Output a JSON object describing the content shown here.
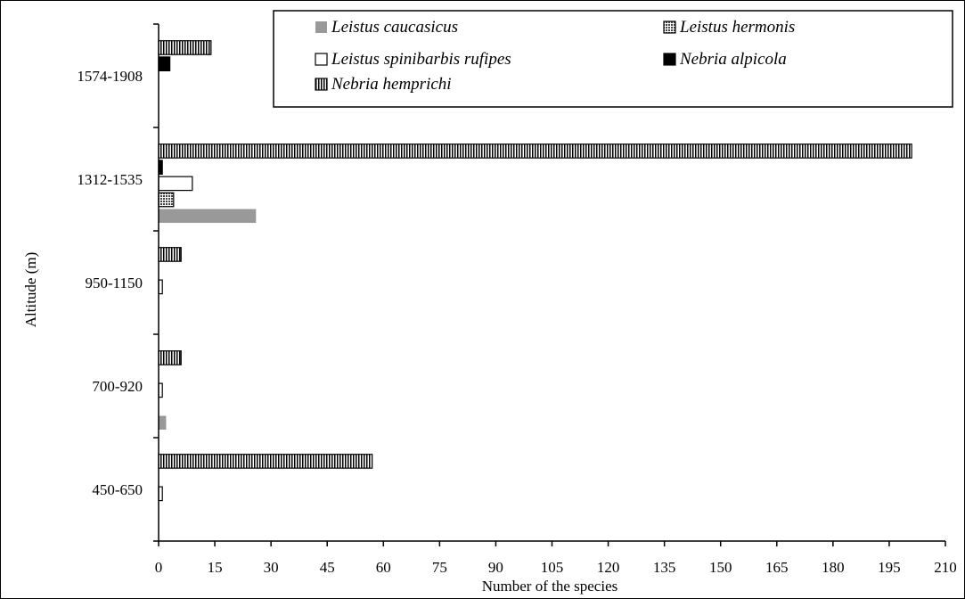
{
  "chart_data": {
    "type": "bar",
    "orientation": "horizontal",
    "title": "",
    "xlabel": "Number of the species",
    "ylabel": "Altitude (m)",
    "xlim": [
      0,
      210
    ],
    "xticks": [
      0,
      15,
      30,
      45,
      60,
      75,
      90,
      105,
      120,
      135,
      150,
      165,
      180,
      195,
      210
    ],
    "categories": [
      "450-650",
      "700-920",
      "950-1150",
      "1312-1535",
      "1574-1908"
    ],
    "series": [
      {
        "name": "Leistus caucasicus",
        "values": [
          0,
          2,
          0,
          26,
          0
        ],
        "color": "#999999",
        "pattern": "solid-gray"
      },
      {
        "name": "Leistus hermonis",
        "values": [
          0,
          0,
          0,
          4,
          0
        ],
        "color": "#666666",
        "pattern": "crosshatch"
      },
      {
        "name": "Leistus spinibarbis rufipes",
        "values": [
          1,
          1,
          1,
          9,
          0
        ],
        "color": "#ffffff",
        "pattern": "hollow"
      },
      {
        "name": "Nebria alpicola",
        "values": [
          0,
          0,
          0,
          1,
          3
        ],
        "color": "#000000",
        "pattern": "solid-black"
      },
      {
        "name": "Nebria hemprichi",
        "values": [
          57,
          6,
          6,
          201,
          14
        ],
        "color": "#000000",
        "pattern": "vertical-stripes"
      }
    ],
    "legend_position": "top-right",
    "grid": false
  }
}
